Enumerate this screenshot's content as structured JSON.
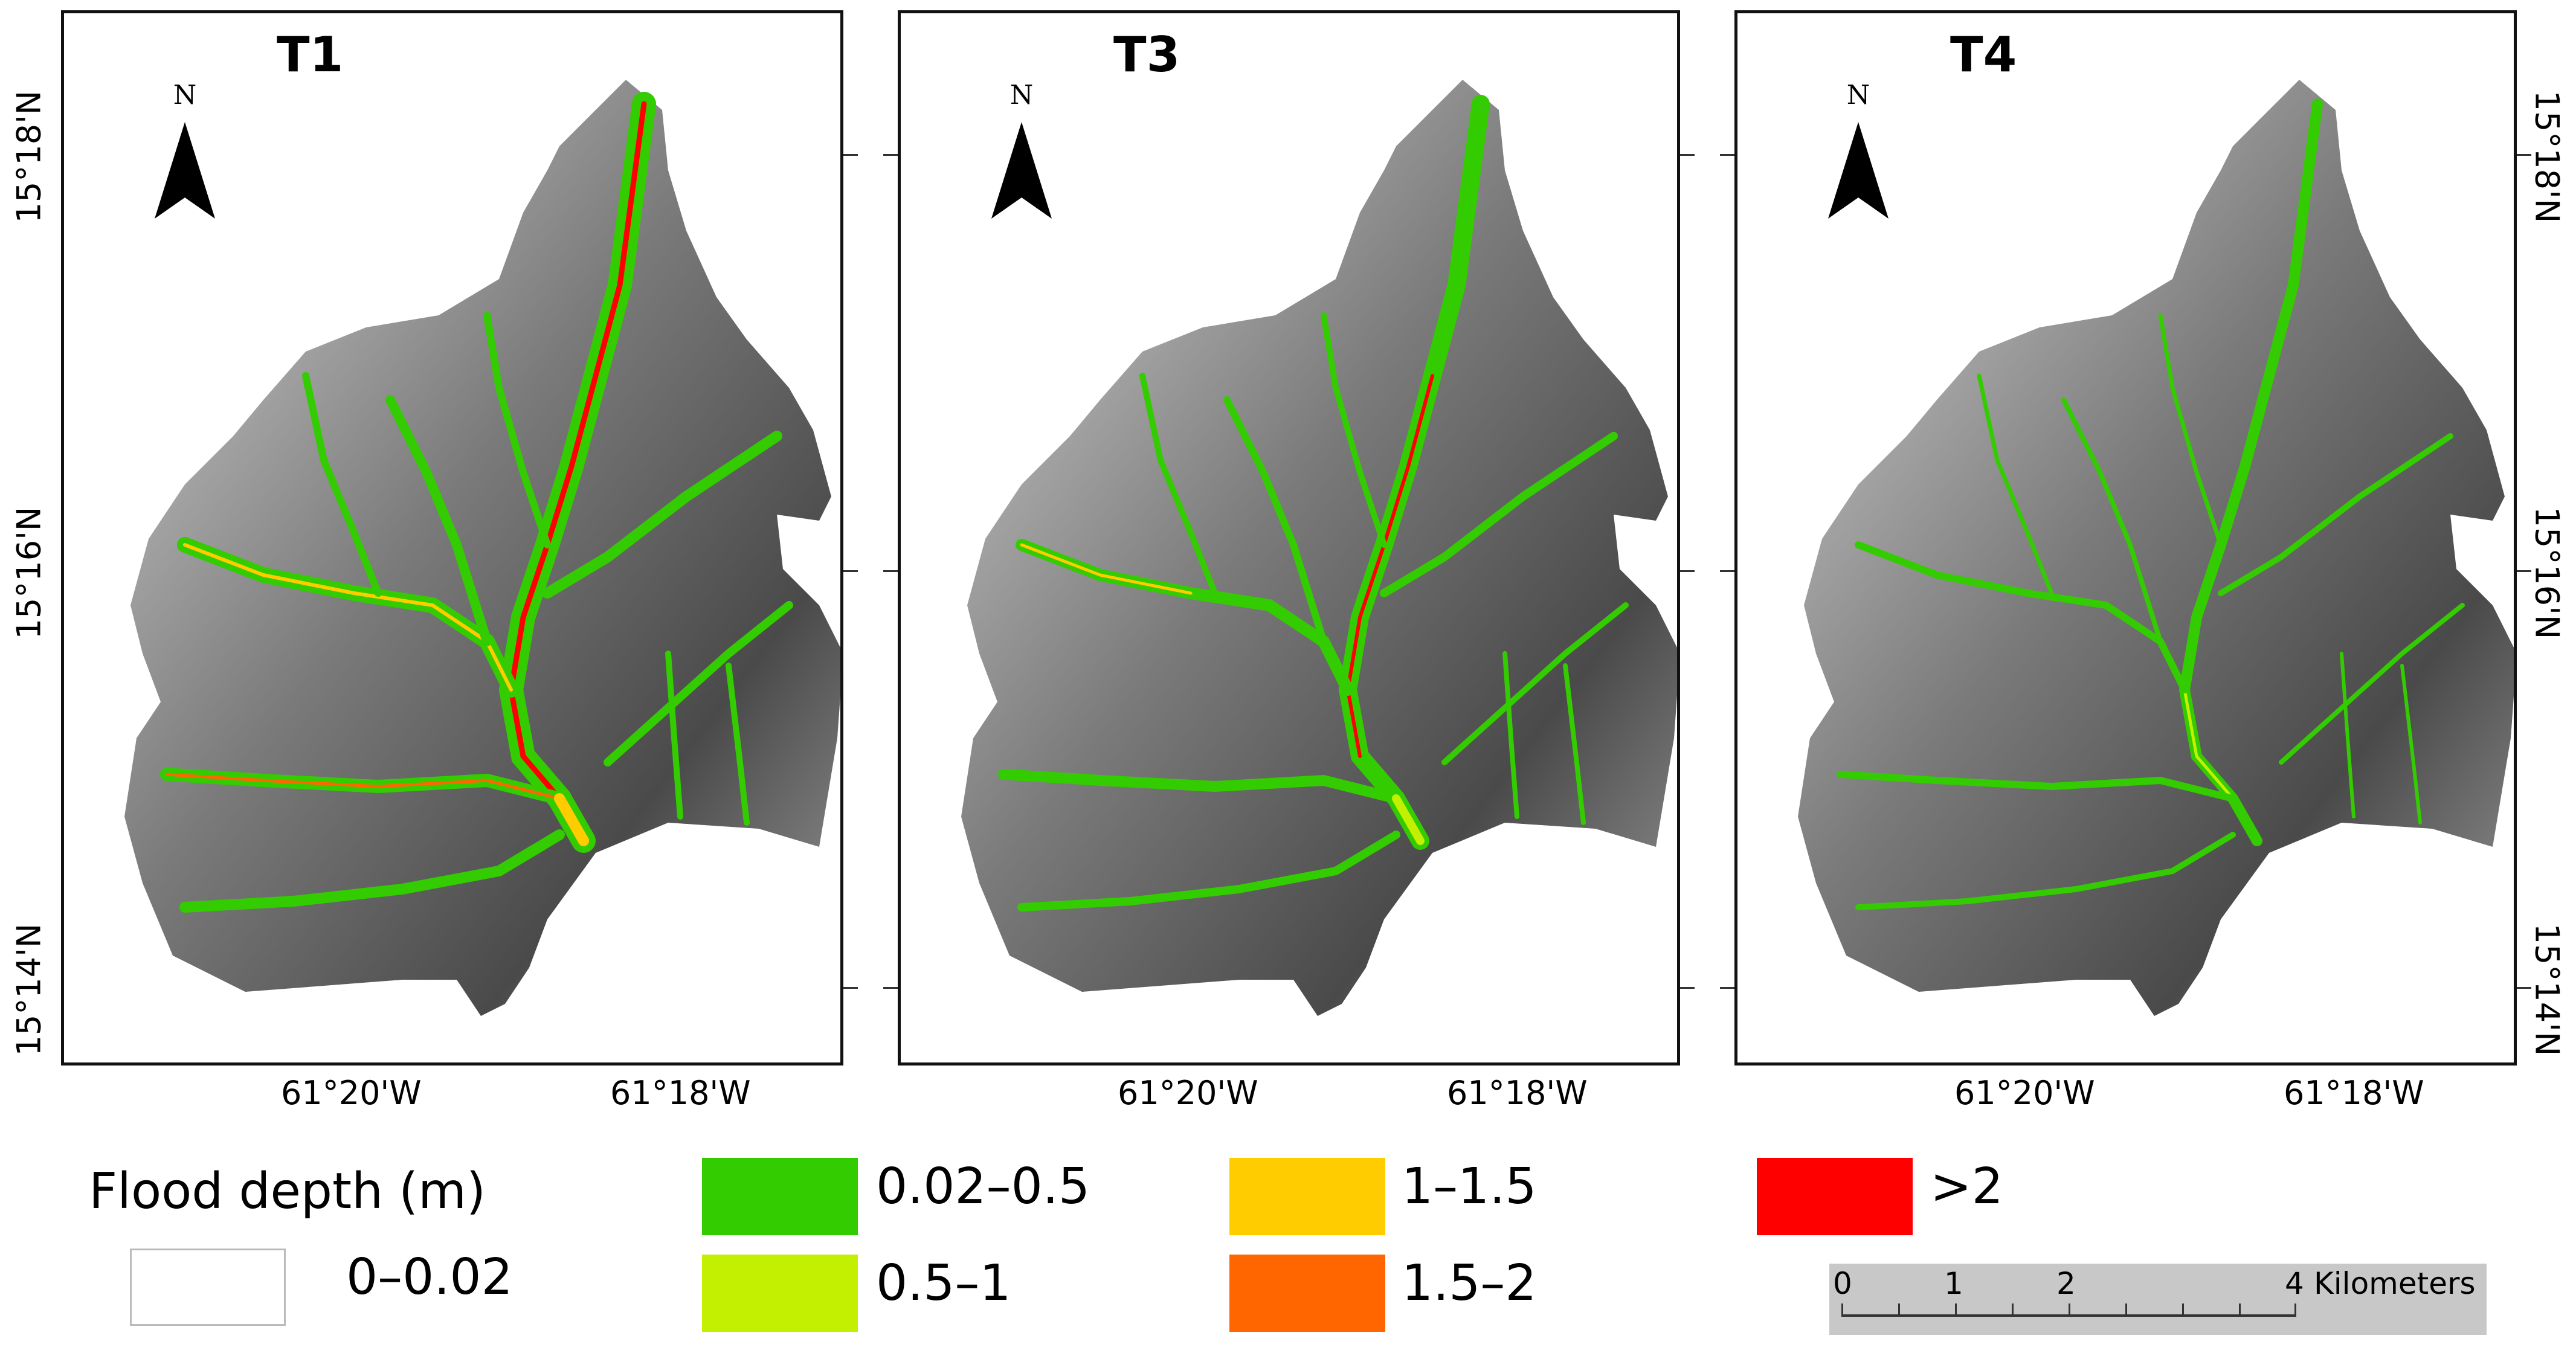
{
  "panels": [
    {
      "id": "t1",
      "title": "T1"
    },
    {
      "id": "t3",
      "title": "T3"
    },
    {
      "id": "t4",
      "title": "T4"
    }
  ],
  "north_arrow": {
    "letter": "N"
  },
  "axes": {
    "latitude_labels": [
      "15°18'N",
      "15°16'N",
      "15°14'N"
    ],
    "longitude_labels": [
      "61°20'W",
      "61°18'W"
    ]
  },
  "legend": {
    "title": "Flood depth (m)",
    "classes": [
      {
        "label": "0–0.02",
        "color": "#ffffff"
      },
      {
        "label": "0.02–0.5",
        "color": "#33cc00"
      },
      {
        "label": "0.5–1",
        "color": "#c2f000"
      },
      {
        "label": "1–1.5",
        "color": "#ffcc00"
      },
      {
        "label": "1.5–2",
        "color": "#ff6600"
      },
      {
        "label": ">2",
        "color": "#ff0000"
      }
    ]
  },
  "scale_bar": {
    "ticks": [
      "0",
      "1",
      "2",
      "4"
    ],
    "unit": "Kilometers"
  },
  "colors": {
    "hillshade_dark": "#555555",
    "hillshade_light": "#dcdcdc",
    "frame": "#111111"
  }
}
